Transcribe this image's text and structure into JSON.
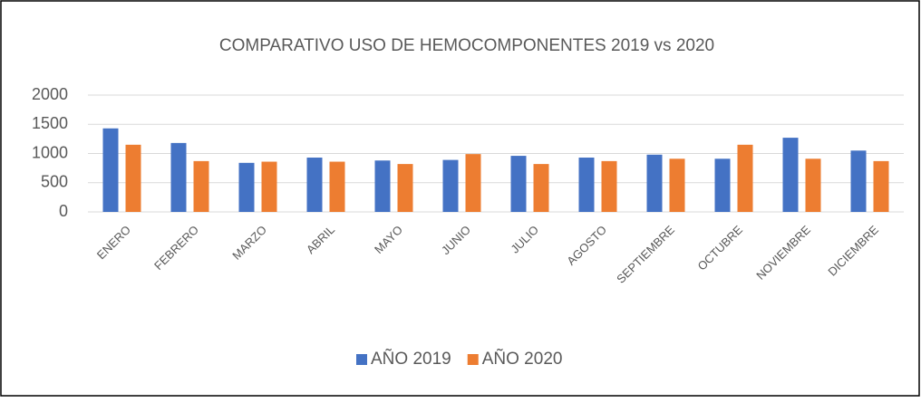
{
  "chart_data": {
    "type": "bar",
    "title": "COMPARATIVO USO DE HEMOCOMPONENTES 2019 vs 2020",
    "categories": [
      "ENERO",
      "FEBRERO",
      "MARZO",
      "ABRIL",
      "MAYO",
      "JUNIO",
      "JULIO",
      "AGOSTO",
      "SEPTIEMBRE",
      "OCTUBRE",
      "NOVIEMBRE",
      "DICIEMBRE"
    ],
    "series": [
      {
        "name": "AÑO 2019",
        "color": "#4472c4",
        "values": [
          1430,
          1180,
          840,
          930,
          880,
          890,
          960,
          930,
          980,
          910,
          1270,
          1050
        ]
      },
      {
        "name": "AÑO 2020",
        "color": "#ed7d31",
        "values": [
          1150,
          870,
          860,
          860,
          820,
          990,
          820,
          870,
          910,
          1150,
          910,
          870
        ]
      }
    ],
    "ylim": [
      0,
      2000
    ],
    "yticks": [
      0,
      500,
      1000,
      1500,
      2000
    ],
    "grid": true,
    "legend": "bottom"
  }
}
